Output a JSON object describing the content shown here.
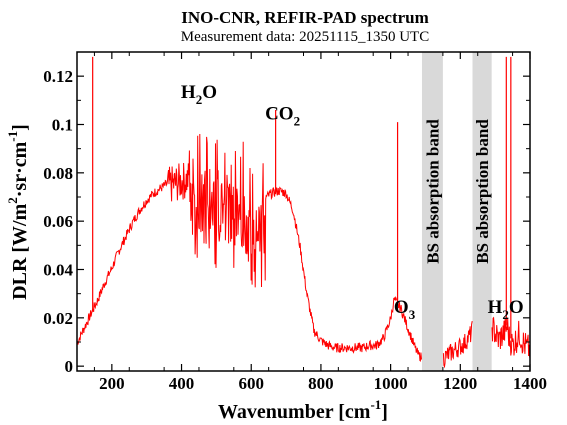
{
  "chart_data": {
    "type": "line",
    "title": "INO-CNR, REFIR-PAD spectrum",
    "subtitle": "Measurement data: 20251115_1350 UTC",
    "xlabel": {
      "text": "Wavenumber [cm",
      "sup": "-1",
      "tail": "]"
    },
    "ylabel": {
      "text": "DLR [W/m",
      "sup1": "2",
      "mid": "·sr·cm",
      "sup2": "-1",
      "tail": "]"
    },
    "xlim": [
      100,
      1400
    ],
    "ylim": [
      -0.002,
      0.13
    ],
    "xticks": [
      200,
      400,
      600,
      800,
      1000,
      1200,
      1400
    ],
    "xtick_labels": [
      "200",
      "400",
      "600",
      "800",
      "1000",
      "1200",
      "1400"
    ],
    "yticks": [
      0,
      0.02,
      0.04,
      0.06,
      0.08,
      0.1,
      0.12
    ],
    "ytick_labels": [
      "0",
      "0.02",
      "0.04",
      "0.06",
      "0.08",
      "0.1",
      "0.12"
    ],
    "line_color": "#ff0000",
    "band_color": "#d9d9d9",
    "bands": [
      {
        "x0": 1090,
        "x1": 1150,
        "label": "BS absorption band"
      },
      {
        "x0": 1235,
        "x1": 1290,
        "label": "BS absorption band"
      }
    ],
    "annotations": [
      {
        "base": "H",
        "sub": "2",
        "tail": "O",
        "x": 450,
        "y": 0.111
      },
      {
        "base": "CO",
        "sub": "2",
        "tail": "",
        "x": 690,
        "y": 0.102
      },
      {
        "base": "O",
        "sub": "3",
        "tail": "",
        "x": 1040,
        "y": 0.022
      },
      {
        "base": "H",
        "sub": "2",
        "tail": "O",
        "x": 1330,
        "y": 0.022
      }
    ],
    "series": [
      {
        "x": [
          100,
          120,
          140,
          160,
          180,
          200,
          220,
          240,
          260,
          280,
          300,
          320,
          340,
          360,
          380,
          400,
          420,
          440,
          460,
          480,
          500,
          520,
          540,
          560,
          580,
          600,
          620,
          640,
          660,
          680,
          700,
          720,
          740,
          760,
          780,
          800,
          820,
          840,
          860,
          880,
          900,
          920,
          940,
          960,
          980,
          1000,
          1010,
          1020,
          1030,
          1040,
          1050,
          1060,
          1070,
          1080,
          1090,
          1150,
          1160,
          1170,
          1180,
          1190,
          1200,
          1210,
          1220,
          1230,
          1235,
          1290,
          1300,
          1310,
          1320,
          1330,
          1335,
          1340,
          1350,
          1360,
          1370,
          1380,
          1390,
          1400
        ],
        "y": [
          0.01,
          0.016,
          0.022,
          0.028,
          0.035,
          0.041,
          0.048,
          0.054,
          0.06,
          0.065,
          0.069,
          0.072,
          0.074,
          0.076,
          0.077,
          0.078,
          0.079,
          0.08,
          0.08,
          0.081,
          0.08,
          0.079,
          0.078,
          0.077,
          0.075,
          0.073,
          0.071,
          0.07,
          0.072,
          0.073,
          0.072,
          0.065,
          0.05,
          0.03,
          0.015,
          0.011,
          0.009,
          0.008,
          0.008,
          0.008,
          0.008,
          0.008,
          0.009,
          0.009,
          0.012,
          0.02,
          0.028,
          0.026,
          0.024,
          0.02,
          0.016,
          0.012,
          0.008,
          0.005,
          0.004,
          0.004,
          0.005,
          0.006,
          0.007,
          0.008,
          0.009,
          0.01,
          0.012,
          0.014,
          0.016,
          0.018,
          0.015,
          0.012,
          0.014,
          0.016,
          0.018,
          0.013,
          0.01,
          0.012,
          0.015,
          0.011,
          0.009,
          0.008
        ]
      }
    ],
    "spikes": [
      {
        "x": 145,
        "y": 0.128
      },
      {
        "x": 670,
        "y": 0.106
      },
      {
        "x": 1020,
        "y": 0.101
      },
      {
        "x": 1332,
        "y": 0.128
      },
      {
        "x": 1345,
        "y": 0.128
      }
    ]
  }
}
